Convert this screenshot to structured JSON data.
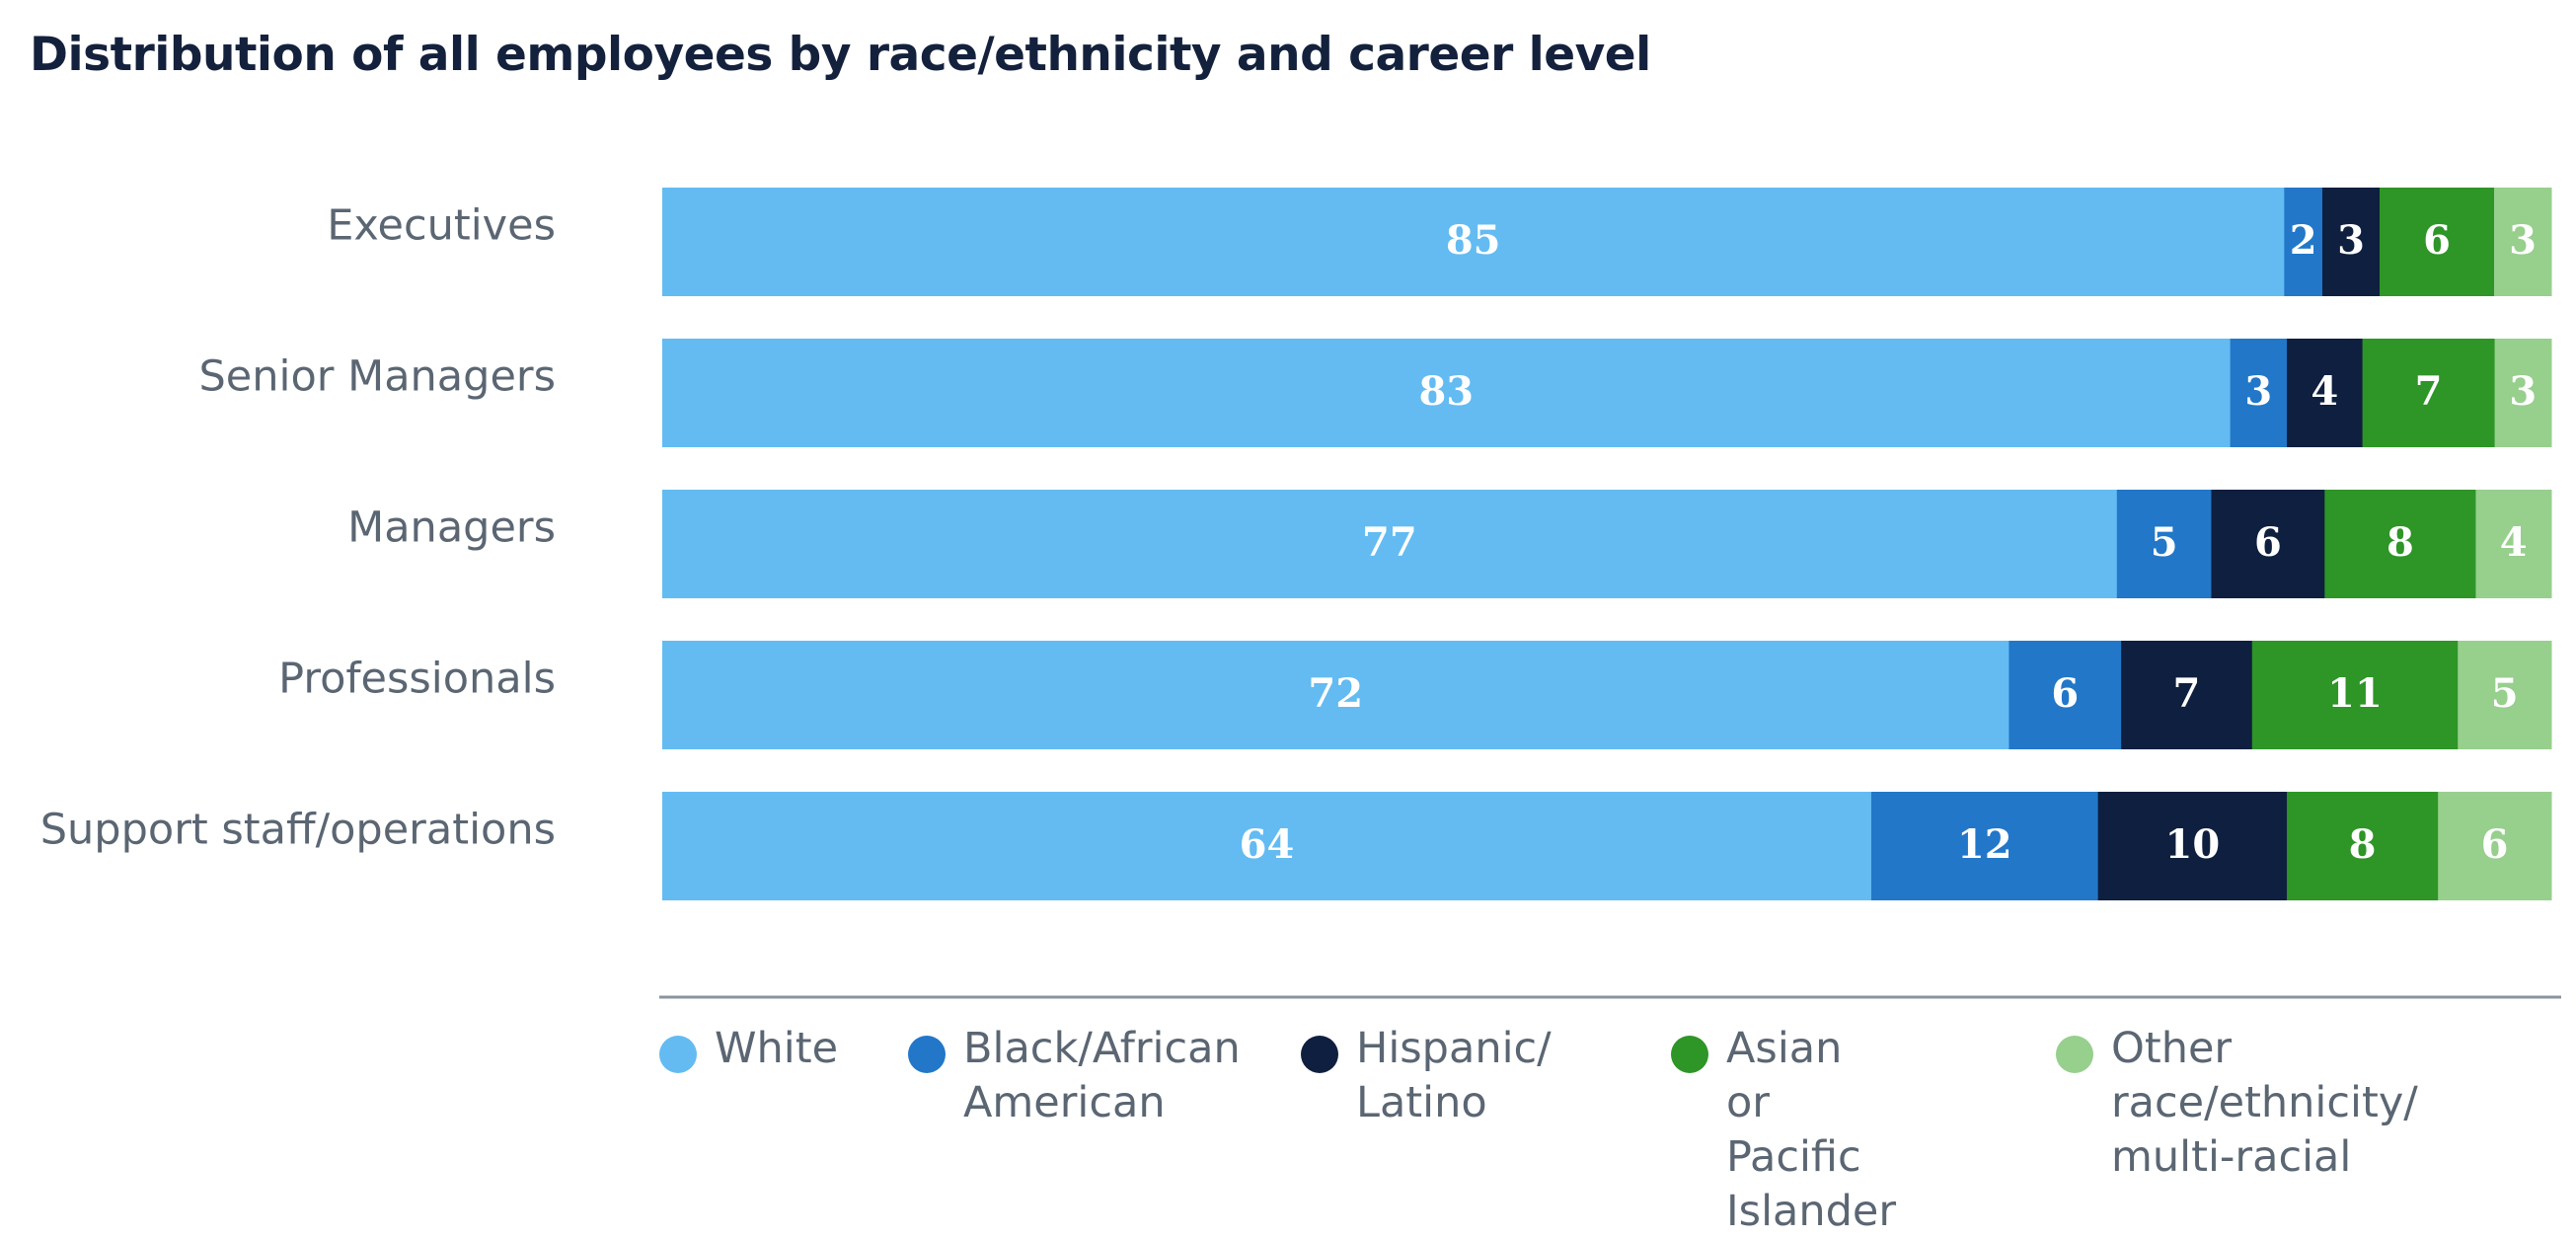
{
  "chart_data": {
    "type": "bar",
    "orientation": "horizontal",
    "stacked": true,
    "title": "Distribution of all employees by race/ethnicity and career level",
    "categories": [
      "Executives",
      "Senior Managers",
      "Managers",
      "Professionals",
      "Support staff/operations"
    ],
    "series": [
      {
        "name": "White",
        "legend_label": "White",
        "color": "#63bbf2",
        "values": [
          85,
          83,
          77,
          72,
          64
        ]
      },
      {
        "name": "Black/African American",
        "legend_label": "Black/African\nAmerican",
        "color": "#2277c8",
        "values": [
          2,
          3,
          5,
          6,
          12
        ]
      },
      {
        "name": "Hispanic/Latino",
        "legend_label": "Hispanic/\nLatino",
        "color": "#0f1f3f",
        "values": [
          3,
          4,
          6,
          7,
          10
        ]
      },
      {
        "name": "Asian or Pacific Islander",
        "legend_label": "Asian or Pacific\nIslander",
        "color": "#2e9527",
        "values": [
          6,
          7,
          8,
          11,
          8
        ]
      },
      {
        "name": "Other race/ethnicity/multi-racial",
        "legend_label": "Other race/ethnicity/\nmulti-racial",
        "color": "#97cf8d",
        "values": [
          3,
          3,
          4,
          5,
          6
        ]
      }
    ],
    "legend_position": "bottom",
    "grid": false,
    "data_labels": true,
    "axis_line_color": "#8a94a0"
  }
}
